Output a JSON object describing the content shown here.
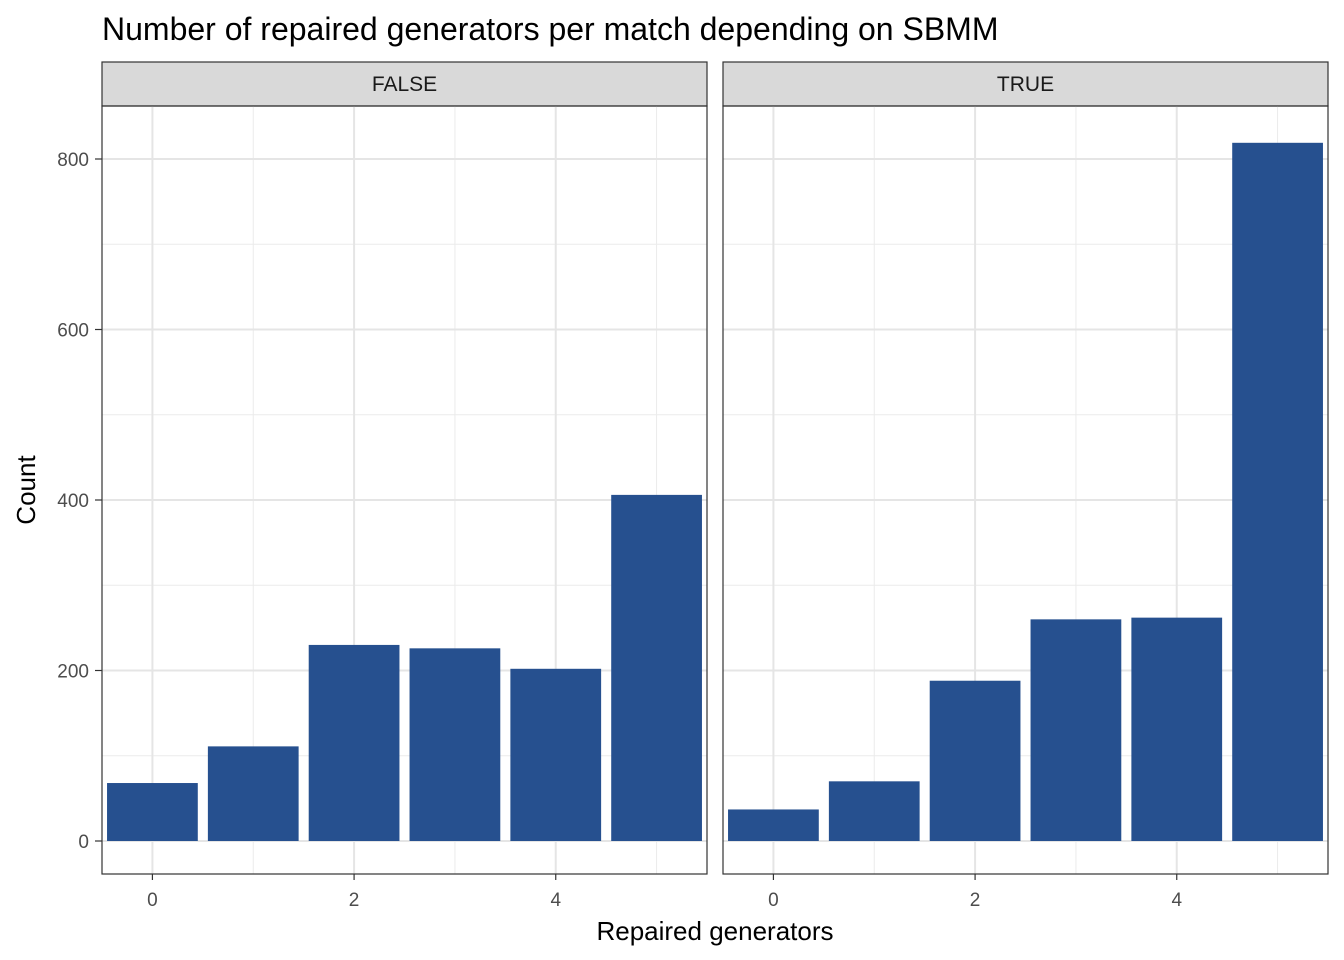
{
  "chart_data": {
    "type": "bar",
    "title": "Number of repaired generators per match depending on SBMM",
    "xlabel": "Repaired generators",
    "ylabel": "Count",
    "x": [
      0,
      1,
      2,
      3,
      4,
      5
    ],
    "xticks": [
      0,
      2,
      4
    ],
    "xlim": [
      -0.5,
      5.5
    ],
    "yticks": [
      0,
      200,
      400,
      600,
      800
    ],
    "ylim": [
      0,
      860
    ],
    "grid": true,
    "bar_color": "#26508F",
    "facets": [
      {
        "label": "FALSE",
        "values": [
          68,
          111,
          230,
          226,
          202,
          406
        ]
      },
      {
        "label": "TRUE",
        "values": [
          37,
          70,
          188,
          260,
          262,
          819
        ]
      }
    ]
  }
}
